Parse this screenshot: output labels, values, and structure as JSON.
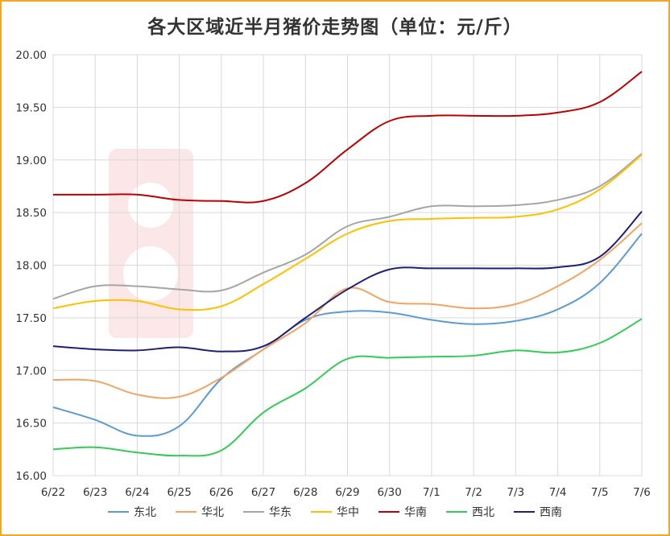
{
  "chart_data": {
    "type": "line",
    "title": "各大区域近半月猪价走势图（单位：元/斤）",
    "x": [
      "6/22",
      "6/23",
      "6/24",
      "6/25",
      "6/26",
      "6/27",
      "6/28",
      "6/29",
      "6/30",
      "7/1",
      "7/2",
      "7/3",
      "7/4",
      "7/5",
      "7/6"
    ],
    "ylim": [
      16.0,
      20.0
    ],
    "yticks": [
      "16.00",
      "16.50",
      "17.00",
      "17.50",
      "18.00",
      "18.50",
      "19.00",
      "19.50",
      "20.00"
    ],
    "grid": true,
    "legend_position": "bottom",
    "series": [
      {
        "name": "东北",
        "color": "#5B9BD5",
        "values": [
          16.65,
          16.53,
          16.38,
          16.47,
          16.92,
          17.2,
          17.48,
          17.56,
          17.55,
          17.48,
          17.44,
          17.47,
          17.58,
          17.83,
          18.3
        ]
      },
      {
        "name": "华北",
        "color": "#F4A460",
        "values": [
          16.91,
          16.9,
          16.77,
          16.75,
          16.93,
          17.2,
          17.45,
          17.78,
          17.65,
          17.63,
          17.59,
          17.63,
          17.8,
          18.05,
          18.4
        ]
      },
      {
        "name": "华东",
        "color": "#A5A5A5",
        "values": [
          17.68,
          17.8,
          17.8,
          17.77,
          17.76,
          17.93,
          18.1,
          18.37,
          18.46,
          18.56,
          18.56,
          18.57,
          18.62,
          18.75,
          19.06
        ]
      },
      {
        "name": "华中",
        "color": "#FFC000",
        "values": [
          17.59,
          17.66,
          17.66,
          17.58,
          17.61,
          17.82,
          18.06,
          18.3,
          18.42,
          18.44,
          18.45,
          18.46,
          18.53,
          18.72,
          19.05
        ]
      },
      {
        "name": "华南",
        "color": "#C00000",
        "values": [
          18.67,
          18.67,
          18.67,
          18.62,
          18.61,
          18.61,
          18.78,
          19.1,
          19.37,
          19.42,
          19.42,
          19.42,
          19.45,
          19.55,
          19.84
        ]
      },
      {
        "name": "西北",
        "color": "#33CC55",
        "values": [
          16.25,
          16.27,
          16.22,
          16.19,
          16.24,
          16.6,
          16.83,
          17.11,
          17.12,
          17.13,
          17.14,
          17.19,
          17.17,
          17.26,
          17.49
        ]
      },
      {
        "name": "西南",
        "color": "#1F1F7A",
        "values": [
          17.23,
          17.2,
          17.19,
          17.22,
          17.18,
          17.23,
          17.5,
          17.77,
          17.96,
          17.97,
          17.97,
          17.97,
          17.98,
          18.08,
          18.51
        ]
      }
    ]
  }
}
